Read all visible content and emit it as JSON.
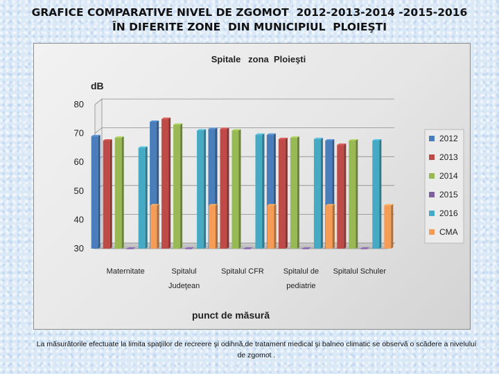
{
  "slide": {
    "title_line1": "GRAFICE COMPARATIVE NIVEL DE ZGOMOT  2012-2013-2014 -2015-2016",
    "title_line2": "ÎN DIFERITE ZONE  DIN MUNICIPIUL  PLOIEŞTI",
    "caption": "La măsurătorile efectuate la limita spaţiilor de recreere şi odihnă,de tratament medical şi balneo climatic se observă o scădere a nivelului de zgomot ."
  },
  "chart_data": {
    "type": "bar",
    "title": "Spitale   zona  Ploieşti",
    "ylabel": "dB",
    "xlabel": "punct de măsură",
    "ylim": [
      30,
      80
    ],
    "yticks": [
      30,
      40,
      50,
      60,
      70,
      80
    ],
    "grid": true,
    "legend_position": "right",
    "categories": [
      [
        "Maternitate"
      ],
      [
        "Spitalul",
        "Judeţean"
      ],
      [
        "Spitalul CFR"
      ],
      [
        "Spitalul de",
        "pediatrie"
      ],
      [
        "Spitalul Schuler"
      ]
    ],
    "series": [
      {
        "name": "2012",
        "color": "#4a7ebb",
        "values": [
          69,
          74,
          71.5,
          69.5,
          67.5
        ]
      },
      {
        "name": "2013",
        "color": "#be4b48",
        "values": [
          67.5,
          75,
          71.5,
          68,
          66
        ]
      },
      {
        "name": "2014",
        "color": "#98b954",
        "values": [
          68.5,
          73,
          71,
          68.5,
          67.5
        ]
      },
      {
        "name": "2015",
        "color": "#7d60a0",
        "values": [
          30,
          30,
          30,
          30,
          30
        ]
      },
      {
        "name": "2016",
        "color": "#46aac4",
        "values": [
          65,
          71,
          69.5,
          68,
          67.5
        ]
      },
      {
        "name": "CMA",
        "color": "#f59d56",
        "values": [
          45,
          45,
          45,
          45,
          45
        ]
      }
    ]
  }
}
